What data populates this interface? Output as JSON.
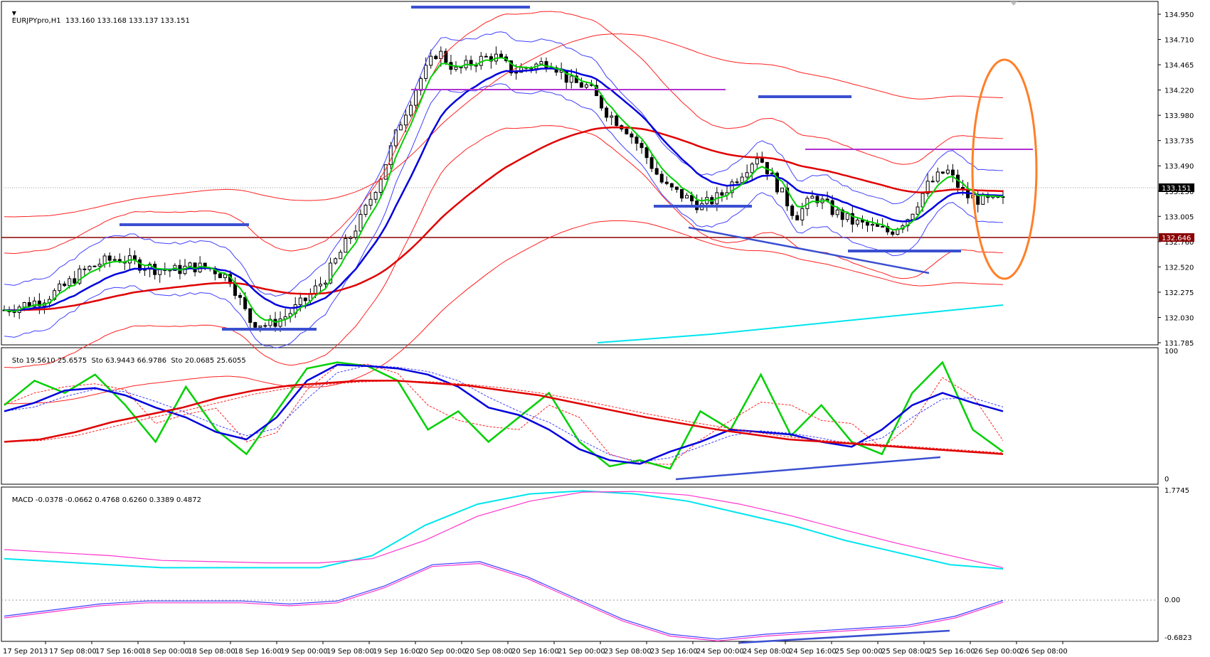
{
  "window": {
    "main_header": "EURJPYpro,H1  133.160 133.168 133.137 133.151",
    "sto_header": "Sto 19.5610 25.6575  Sto 63.9443 66.9786  Sto 20.0685 25.6055",
    "macd_header": "MACD -0.0378 -0.0662 0.4768 0.6260 0.3389 0.4872"
  },
  "price_axis": {
    "ticks": [
      "134.950",
      "134.710",
      "134.465",
      "134.220",
      "133.980",
      "133.735",
      "133.490",
      "133.250",
      "133.005",
      "132.760",
      "132.520",
      "132.275",
      "132.030",
      "131.785"
    ],
    "current_price": "133.151",
    "support_price": "132.646"
  },
  "sto_axis": {
    "ticks": [
      "100",
      "0"
    ]
  },
  "macd_axis": {
    "ticks": [
      "1.7745",
      "0.00",
      "-0.6823"
    ]
  },
  "time_axis": {
    "labels": [
      "17 Sep 2013",
      "17 Sep 08:00",
      "17 Sep 16:00",
      "18 Sep 00:00",
      "18 Sep 08:00",
      "18 Sep 16:00",
      "19 Sep 00:00",
      "19 Sep 08:00",
      "19 Sep 16:00",
      "20 Sep 00:00",
      "20 Sep 08:00",
      "20 Sep 16:00",
      "21 Sep 00:00",
      "23 Sep 08:00",
      "23 Sep 16:00",
      "24 Sep 00:00",
      "24 Sep 08:00",
      "24 Sep 16:00",
      "25 Sep 00:00",
      "25 Sep 08:00",
      "25 Sep 16:00",
      "26 Sep 00:00",
      "26 Sep 08:00"
    ]
  },
  "colors": {
    "candle": "#000000",
    "ema_fast": "#00d000",
    "ema_mid": "#0000dd",
    "ema_slow": "#e00000",
    "bands_blue": "#4040ff",
    "bands_red": "#ff2020",
    "cyan": "#00e5ee",
    "magenta": "#ff33cc",
    "annotation_blue": "#3a4fd0",
    "annotation_purple": "#b030d0",
    "support_line": "#8b0000",
    "orange_oval": "#ff7f27"
  },
  "chart_data": [
    {
      "type": "candlestick",
      "title": "EURJPYpro,H1",
      "ylim": [
        131.785,
        134.95
      ],
      "x_range": [
        "17 Sep 2013",
        "26 Sep 08:00"
      ],
      "close_path": [
        132.1,
        132.15,
        132.2,
        132.3,
        132.45,
        132.55,
        132.6,
        132.55,
        132.5,
        132.48,
        132.52,
        132.5,
        132.4,
        132.0,
        131.95,
        132.05,
        132.2,
        132.4,
        132.7,
        133.0,
        133.4,
        133.9,
        134.3,
        134.6,
        134.4,
        134.5,
        134.55,
        134.4,
        134.45,
        134.5,
        134.3,
        134.25,
        134.0,
        133.85,
        133.6,
        133.3,
        133.2,
        133.1,
        133.2,
        133.4,
        133.6,
        133.3,
        133.0,
        133.2,
        133.05,
        132.95,
        132.9,
        132.85,
        133.0,
        133.3,
        133.45,
        133.2,
        133.15,
        133.15
      ],
      "last_close": 133.151,
      "grid": false
    },
    {
      "type": "line",
      "title": "Stochastic",
      "ylim": [
        0,
        100
      ],
      "series": [
        {
          "name": "Sto 19.5610 25.6575",
          "values": [
            60,
            80,
            70,
            85,
            60,
            30,
            75,
            40,
            20,
            55,
            90,
            95,
            92,
            80,
            40,
            55,
            30,
            50,
            70,
            30,
            10,
            15,
            8,
            55,
            40,
            85,
            35,
            60,
            30,
            20,
            70,
            95,
            40,
            22
          ]
        },
        {
          "name": "Sto 63.9443 66.9786",
          "values": [
            55,
            62,
            72,
            74,
            68,
            58,
            50,
            38,
            32,
            50,
            80,
            93,
            92,
            90,
            85,
            75,
            58,
            52,
            40,
            24,
            15,
            12,
            22,
            30,
            40,
            38,
            36,
            30,
            26,
            40,
            60,
            70,
            62,
            55
          ]
        },
        {
          "name": "Sto 20.0685 25.6055",
          "values": [
            30,
            32,
            38,
            46,
            52,
            58,
            66,
            72,
            76,
            78,
            80,
            80,
            78,
            76,
            72,
            68,
            62,
            56,
            50,
            45,
            40,
            36,
            32,
            30,
            28,
            26,
            24,
            22,
            20
          ]
        }
      ]
    },
    {
      "type": "line",
      "title": "MACD",
      "ylim": [
        -0.6823,
        1.7745
      ],
      "series": [
        {
          "name": "MACD -0.0378 -0.0662",
          "values": [
            -0.3,
            -0.2,
            -0.1,
            -0.05,
            -0.05,
            -0.05,
            -0.1,
            -0.05,
            0.2,
            0.55,
            0.6,
            0.35,
            0.0,
            -0.35,
            -0.6,
            -0.68,
            -0.6,
            -0.55,
            -0.5,
            -0.45,
            -0.3,
            -0.04
          ]
        },
        {
          "name": "MACD 0.4768 0.6260",
          "values": [
            0.65,
            0.6,
            0.55,
            0.5,
            0.5,
            0.5,
            0.5,
            0.7,
            1.2,
            1.55,
            1.72,
            1.77,
            1.72,
            1.6,
            1.4,
            1.2,
            0.95,
            0.75,
            0.55,
            0.48
          ]
        },
        {
          "name": "MACD 0.3389 0.4872",
          "values": [
            0.8,
            0.75,
            0.7,
            0.62,
            0.6,
            0.58,
            0.58,
            0.65,
            0.95,
            1.35,
            1.6,
            1.75,
            1.76,
            1.7,
            1.55,
            1.35,
            1.12,
            0.9,
            0.7,
            0.5
          ]
        }
      ]
    }
  ]
}
